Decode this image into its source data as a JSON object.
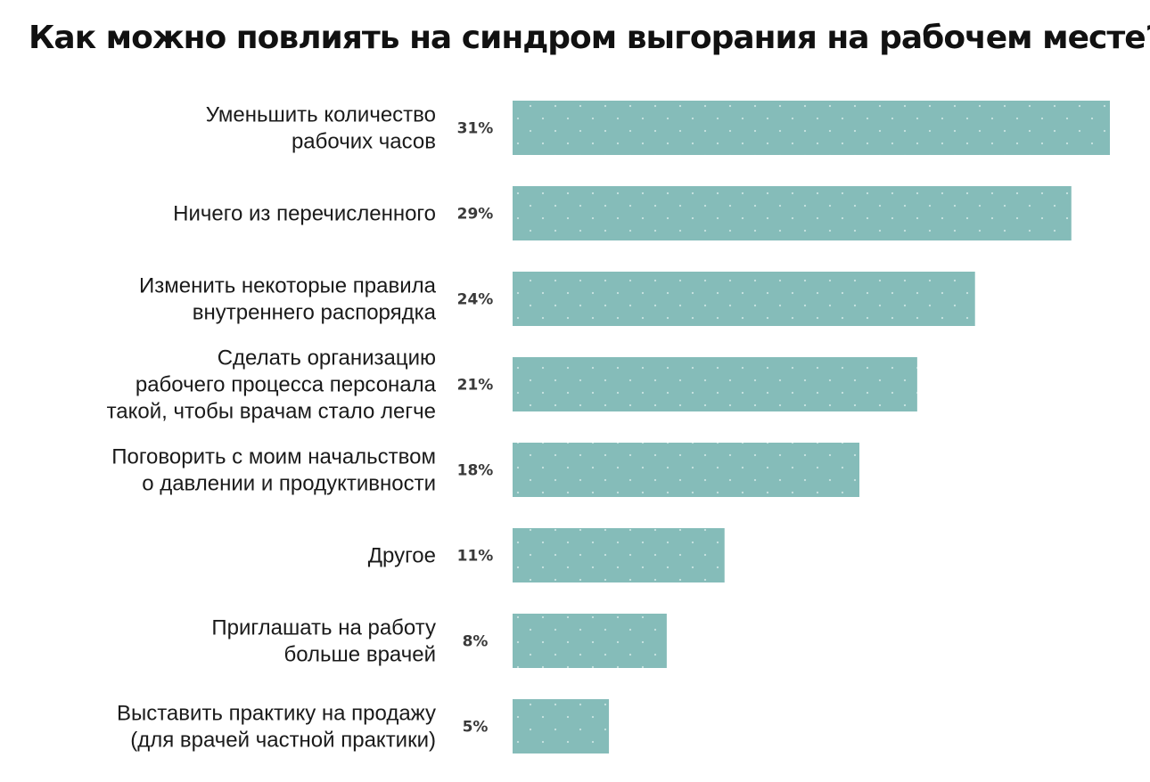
{
  "chart_data": {
    "type": "bar",
    "orientation": "horizontal",
    "title": "Как можно повлиять на синдром выгорания на рабочем месте?",
    "categories": [
      [
        "Уменьшить количество",
        "рабочих часов"
      ],
      [
        "Ничего из перечисленного"
      ],
      [
        "Изменить некоторые правила",
        "внутреннего распорядка"
      ],
      [
        "Сделать организацию",
        "рабочего процесса персонала",
        "такой, чтобы врачам стало легче"
      ],
      [
        "Поговорить с моим начальством",
        "о давлении и продуктивности"
      ],
      [
        "Другое"
      ],
      [
        "Приглашать на работу",
        "больше врачей"
      ],
      [
        "Выставить практику на продажу",
        "(для врачей частной практики)"
      ]
    ],
    "values": [
      31,
      29,
      24,
      21,
      18,
      11,
      8,
      5
    ],
    "value_labels": [
      "31%",
      "29%",
      "24%",
      "21%",
      "18%",
      "11%",
      "8%",
      "5%"
    ],
    "unit": "%",
    "bar_color": "#85bcb9",
    "dot_color": "#c9e3e1",
    "xlim": [
      0,
      31
    ],
    "grid": false,
    "legend": "none"
  }
}
